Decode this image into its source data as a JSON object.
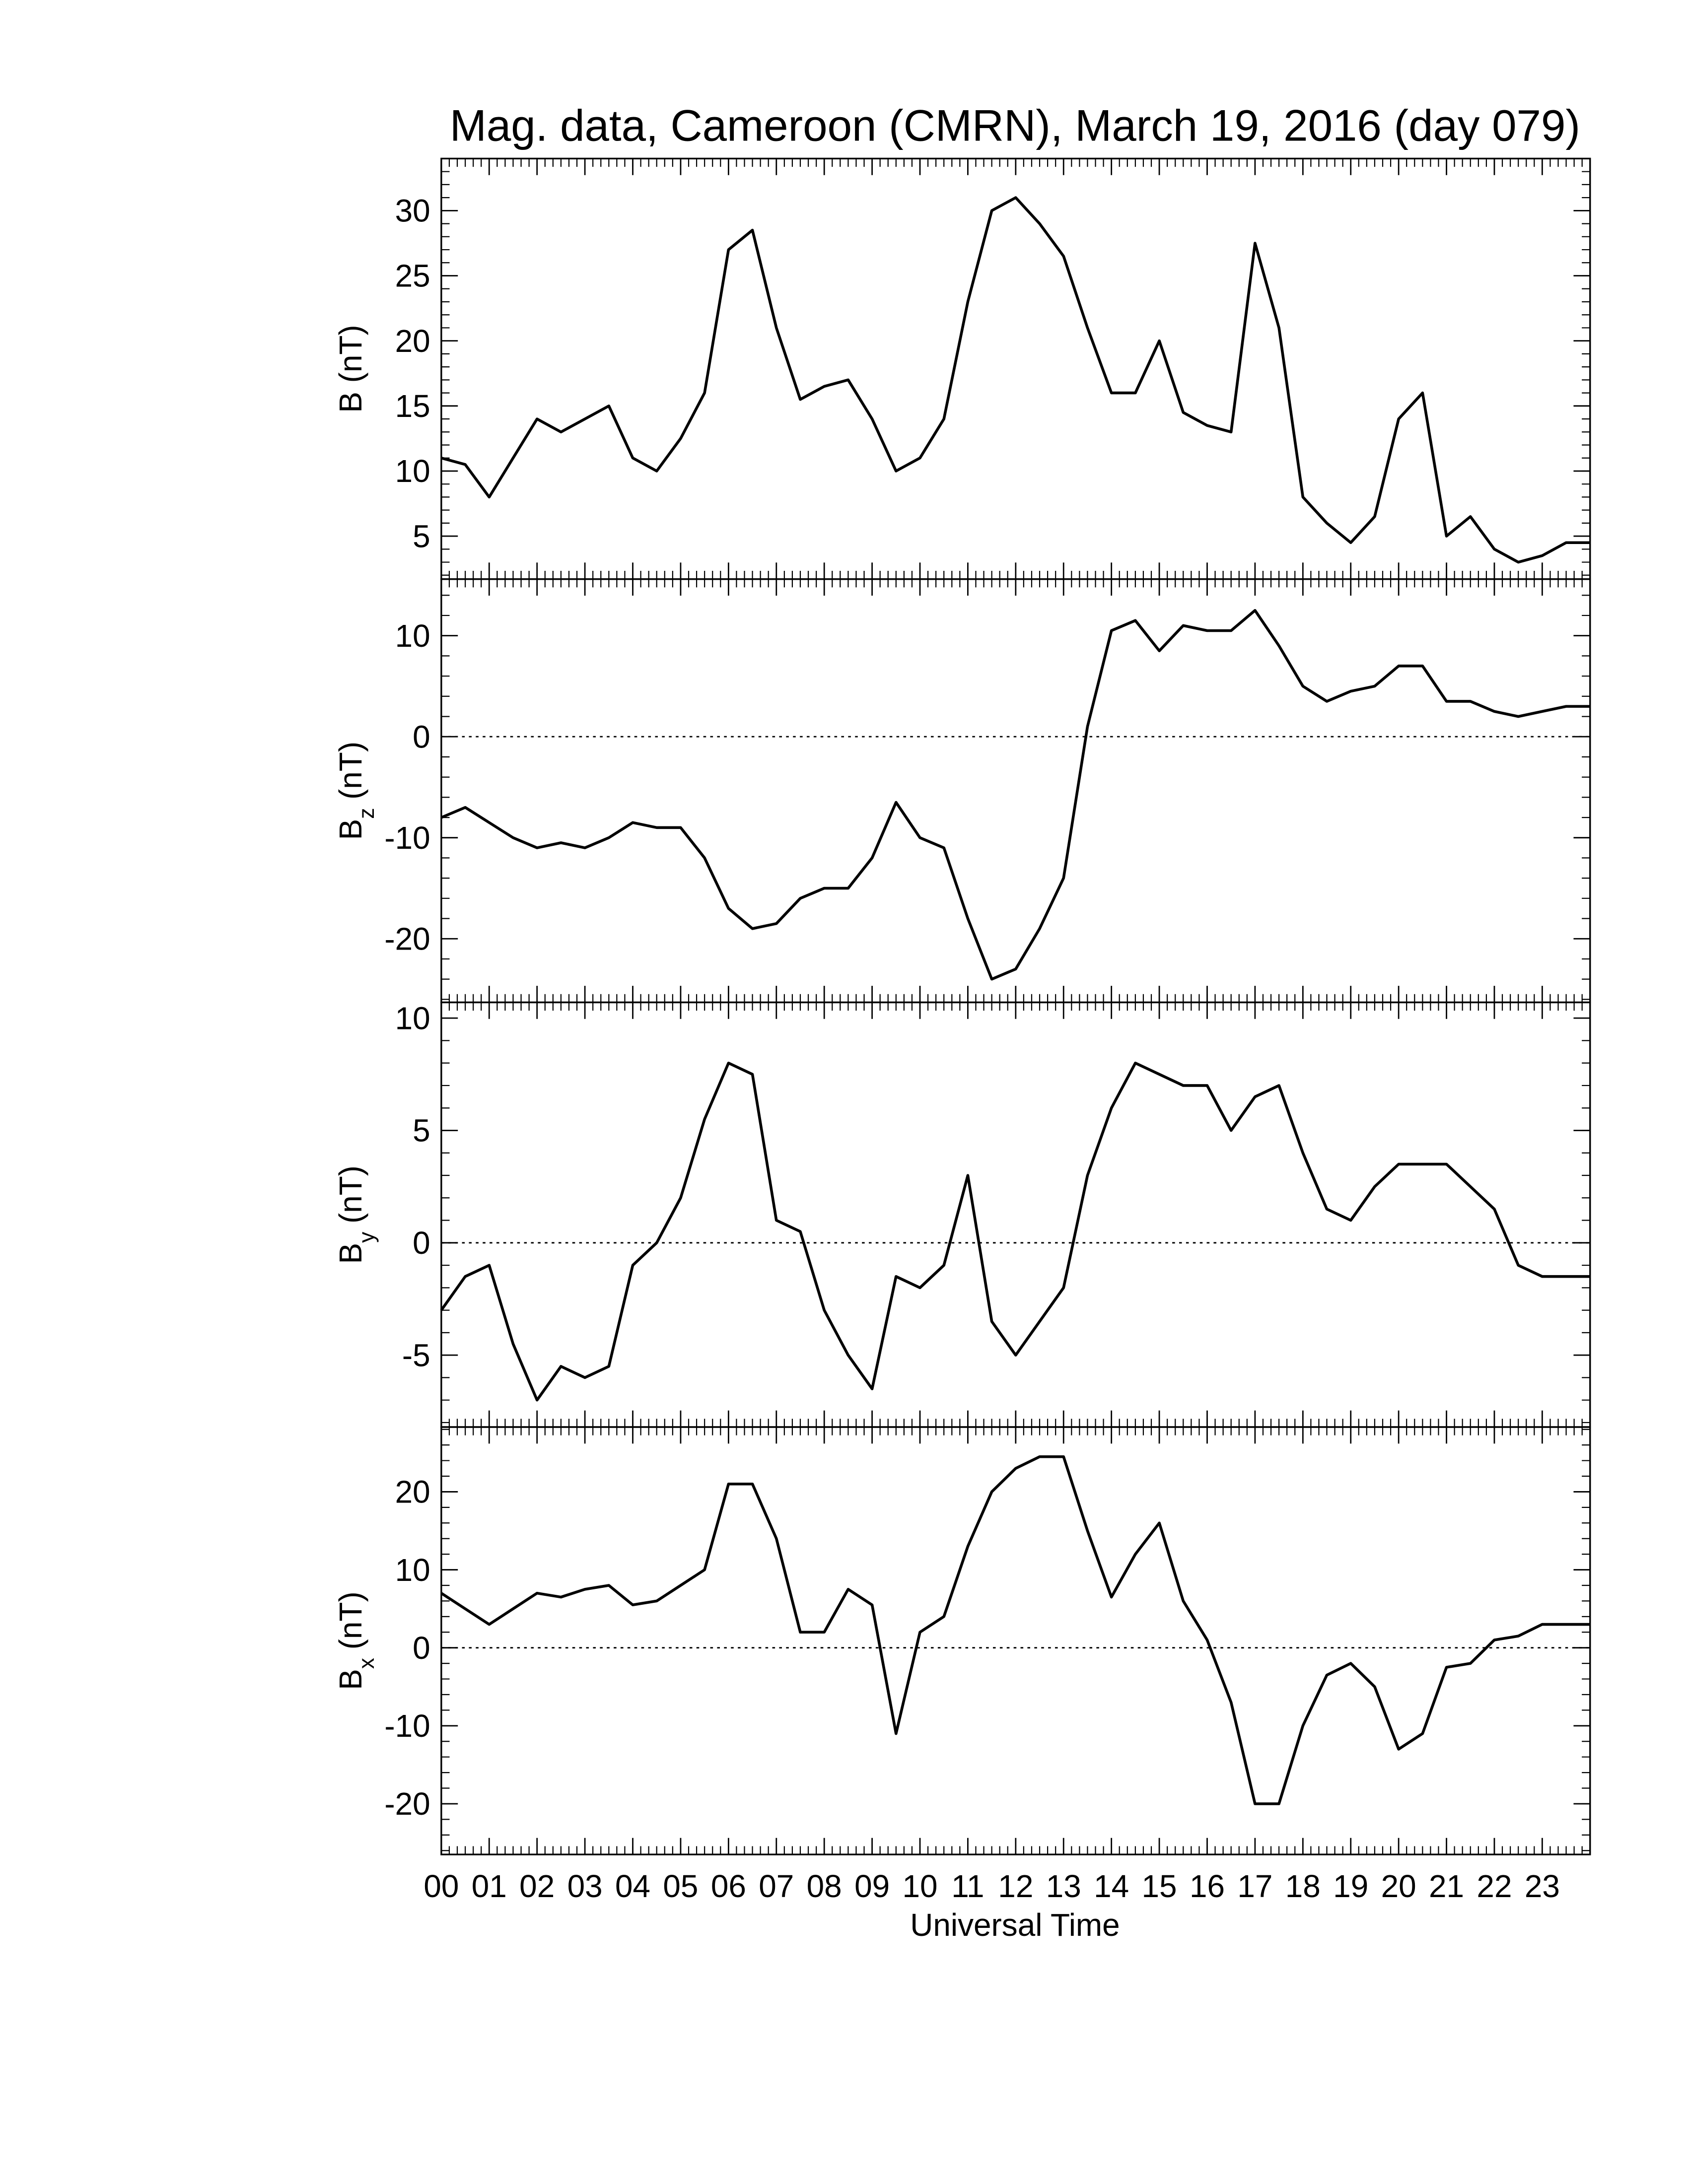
{
  "chart_data": [
    {
      "type": "line",
      "title": "Mag. data, Cameroon (CMRN), March 19, 2016 (day 079)",
      "ylabel": [
        "B (nT)"
      ],
      "xlim": [
        0,
        24
      ],
      "ylim": [
        1.7,
        34
      ],
      "yticks": [
        5,
        10,
        15,
        20,
        25,
        30
      ],
      "zero_line": false,
      "x": [
        0,
        0.5,
        1,
        1.5,
        2,
        2.5,
        3,
        3.5,
        4,
        4.5,
        5,
        5.5,
        6,
        6.5,
        7,
        7.5,
        8,
        8.5,
        9,
        9.5,
        10,
        10.5,
        11,
        11.5,
        12,
        12.5,
        13,
        13.5,
        14,
        14.5,
        15,
        15.5,
        16,
        16.5,
        17,
        17.5,
        18,
        18.5,
        19,
        19.5,
        20,
        20.5,
        21,
        21.5,
        22,
        22.5,
        23,
        23.5,
        24
      ],
      "series": [
        {
          "color": "#000000",
          "values": [
            11,
            10.5,
            8,
            11,
            14,
            13,
            14,
            15,
            11,
            10,
            12.5,
            16,
            27,
            28.5,
            21,
            15.5,
            16.5,
            17,
            14,
            10,
            11,
            14,
            23,
            30,
            31,
            29,
            26.5,
            21,
            16,
            16,
            20,
            14.5,
            13.5,
            13,
            27.5,
            21,
            8,
            6,
            4.5,
            6.5,
            14,
            16,
            5,
            6.5,
            4,
            3,
            3.5,
            4.5,
            4.5
          ]
        }
      ]
    },
    {
      "type": "line",
      "ylabel": [
        "B",
        "z",
        "(nT)"
      ],
      "xlim": [
        0,
        24
      ],
      "ylim": [
        -26.3,
        15.6
      ],
      "yticks": [
        -20,
        -10,
        0,
        10
      ],
      "zero_line": true,
      "x": [
        0,
        0.5,
        1,
        1.5,
        2,
        2.5,
        3,
        3.5,
        4,
        4.5,
        5,
        5.5,
        6,
        6.5,
        7,
        7.5,
        8,
        8.5,
        9,
        9.5,
        10,
        10.5,
        11,
        11.5,
        12,
        12.5,
        13,
        13.5,
        14,
        14.5,
        15,
        15.5,
        16,
        16.5,
        17,
        17.5,
        18,
        18.5,
        19,
        19.5,
        20,
        20.5,
        21,
        21.5,
        22,
        22.5,
        23,
        23.5,
        24
      ],
      "series": [
        {
          "color": "#000000",
          "values": [
            -8,
            -7,
            -8.5,
            -10,
            -11,
            -10.5,
            -11,
            -10,
            -8.5,
            -9,
            -9,
            -12,
            -17,
            -19,
            -18.5,
            -16,
            -15,
            -15,
            -12,
            -6.5,
            -10,
            -11,
            -18,
            -24,
            -23,
            -19,
            -14,
            1,
            10.5,
            11.5,
            8.5,
            11,
            10.5,
            10.5,
            12.5,
            9,
            5,
            3.5,
            4.5,
            5,
            7,
            7,
            3.5,
            3.5,
            2.5,
            2,
            2.5,
            3,
            3
          ]
        }
      ]
    },
    {
      "type": "line",
      "ylabel": [
        "B",
        "y",
        "(nT)"
      ],
      "xlim": [
        0,
        24
      ],
      "ylim": [
        -8.2,
        10.7
      ],
      "yticks": [
        -5,
        0,
        5,
        10
      ],
      "zero_line": true,
      "x": [
        0,
        0.5,
        1,
        1.5,
        2,
        2.5,
        3,
        3.5,
        4,
        4.5,
        5,
        5.5,
        6,
        6.5,
        7,
        7.5,
        8,
        8.5,
        9,
        9.5,
        10,
        10.5,
        11,
        11.5,
        12,
        12.5,
        13,
        13.5,
        14,
        14.5,
        15,
        15.5,
        16,
        16.5,
        17,
        17.5,
        18,
        18.5,
        19,
        19.5,
        20,
        20.5,
        21,
        21.5,
        22,
        22.5,
        23,
        23.5,
        24
      ],
      "series": [
        {
          "color": "#000000",
          "values": [
            -3,
            -1.5,
            -1,
            -4.5,
            -7,
            -5.5,
            -6,
            -5.5,
            -1,
            0,
            2,
            5.5,
            8,
            7.5,
            1,
            0.5,
            -3,
            -5,
            -6.5,
            -1.5,
            -2,
            -1,
            3,
            -3.5,
            -5,
            -3.5,
            -2,
            3,
            6,
            8,
            7.5,
            7,
            7,
            5,
            6.5,
            7,
            4,
            1.5,
            1,
            2.5,
            3.5,
            3.5,
            3.5,
            2.5,
            1.5,
            -1,
            -1.5,
            -1.5,
            -1.5
          ]
        }
      ]
    },
    {
      "type": "line",
      "ylabel": [
        "B",
        "x",
        "(nT)"
      ],
      "xlabel": "Universal Time",
      "xlim": [
        0,
        24
      ],
      "ylim": [
        -26.5,
        28.3
      ],
      "yticks": [
        -20,
        -10,
        0,
        10,
        20
      ],
      "zero_line": true,
      "xticks": [
        {
          "value": 0,
          "label": "00"
        },
        {
          "value": 1,
          "label": "01"
        },
        {
          "value": 2,
          "label": "02"
        },
        {
          "value": 3,
          "label": "03"
        },
        {
          "value": 4,
          "label": "04"
        },
        {
          "value": 5,
          "label": "05"
        },
        {
          "value": 6,
          "label": "06"
        },
        {
          "value": 7,
          "label": "07"
        },
        {
          "value": 8,
          "label": "08"
        },
        {
          "value": 9,
          "label": "09"
        },
        {
          "value": 10,
          "label": "10"
        },
        {
          "value": 11,
          "label": "11"
        },
        {
          "value": 12,
          "label": "12"
        },
        {
          "value": 13,
          "label": "13"
        },
        {
          "value": 14,
          "label": "14"
        },
        {
          "value": 15,
          "label": "15"
        },
        {
          "value": 16,
          "label": "16"
        },
        {
          "value": 17,
          "label": "17"
        },
        {
          "value": 18,
          "label": "18"
        },
        {
          "value": 19,
          "label": "19"
        },
        {
          "value": 20,
          "label": "20"
        },
        {
          "value": 21,
          "label": "21"
        },
        {
          "value": 22,
          "label": "22"
        },
        {
          "value": 23,
          "label": "23"
        }
      ],
      "x": [
        0,
        0.5,
        1,
        1.5,
        2,
        2.5,
        3,
        3.5,
        4,
        4.5,
        5,
        5.5,
        6,
        6.5,
        7,
        7.5,
        8,
        8.5,
        9,
        9.5,
        10,
        10.5,
        11,
        11.5,
        12,
        12.5,
        13,
        13.5,
        14,
        14.5,
        15,
        15.5,
        16,
        16.5,
        17,
        17.5,
        18,
        18.5,
        19,
        19.5,
        20,
        20.5,
        21,
        21.5,
        22,
        22.5,
        23,
        23.5,
        24
      ],
      "series": [
        {
          "color": "#000000",
          "values": [
            7,
            5,
            3,
            5,
            7,
            6.5,
            7.5,
            8,
            5.5,
            6,
            8,
            10,
            21,
            21,
            14,
            2,
            2,
            7.5,
            5.5,
            -11,
            2,
            4,
            13,
            20,
            23,
            24.5,
            24.5,
            15,
            6.5,
            12,
            16,
            6,
            1,
            -7,
            -20,
            -20,
            -10,
            -3.5,
            -2,
            -5,
            -13,
            -11,
            -2.5,
            -2,
            1,
            1.5,
            3,
            3,
            3
          ]
        }
      ]
    }
  ]
}
